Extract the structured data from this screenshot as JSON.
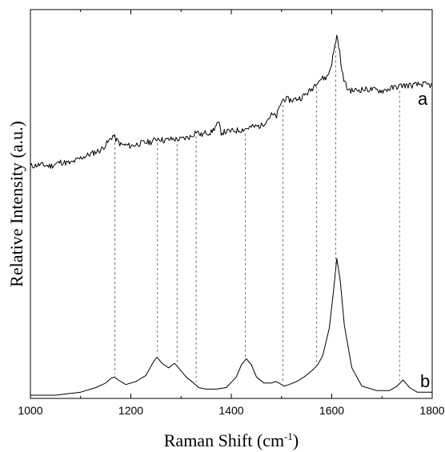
{
  "chart_data": {
    "type": "line",
    "xlabel": "Raman Shift (cm",
    "xlabel_superscript": "-1",
    "xlabel_close": ")",
    "ylabel": "Relative Intensity (a.u.)",
    "xlim": [
      1000,
      1800
    ],
    "xticks": [
      1000,
      1200,
      1400,
      1600,
      1800
    ],
    "minor_step": 100,
    "yticks_labeled": false,
    "grid": false,
    "series": [
      {
        "name": "a",
        "x": [
          1000,
          1020,
          1040,
          1060,
          1080,
          1100,
          1120,
          1140,
          1155,
          1165,
          1170,
          1180,
          1200,
          1220,
          1240,
          1255,
          1265,
          1280,
          1300,
          1320,
          1330,
          1340,
          1350,
          1360,
          1370,
          1375,
          1380,
          1400,
          1420,
          1440,
          1460,
          1480,
          1490,
          1500,
          1505,
          1520,
          1540,
          1560,
          1570,
          1580,
          1590,
          1595,
          1600,
          1605,
          1610,
          1615,
          1620,
          1630,
          1640,
          1660,
          1680,
          1700,
          1720,
          1740,
          1760,
          1780,
          1800
        ],
        "y": [
          0.3,
          0.31,
          0.3,
          0.33,
          0.32,
          0.36,
          0.39,
          0.42,
          0.48,
          0.53,
          0.5,
          0.46,
          0.45,
          0.47,
          0.48,
          0.51,
          0.49,
          0.5,
          0.5,
          0.52,
          0.56,
          0.53,
          0.55,
          0.55,
          0.6,
          0.62,
          0.55,
          0.56,
          0.57,
          0.59,
          0.6,
          0.68,
          0.67,
          0.78,
          0.8,
          0.79,
          0.81,
          0.87,
          0.93,
          0.95,
          0.96,
          1.0,
          1.07,
          1.17,
          1.27,
          1.18,
          1.0,
          0.88,
          0.86,
          0.87,
          0.87,
          0.86,
          0.88,
          0.9,
          0.9,
          0.91,
          0.9
        ]
      },
      {
        "name": "b",
        "x": [
          1000,
          1050,
          1100,
          1130,
          1150,
          1160,
          1167,
          1175,
          1190,
          1210,
          1230,
          1245,
          1252,
          1262,
          1275,
          1287,
          1295,
          1310,
          1325,
          1335,
          1350,
          1370,
          1390,
          1410,
          1420,
          1430,
          1440,
          1450,
          1465,
          1480,
          1488,
          1495,
          1505,
          1515,
          1530,
          1545,
          1560,
          1572,
          1582,
          1595,
          1604,
          1610,
          1617,
          1625,
          1640,
          1660,
          1690,
          1715,
          1730,
          1742,
          1755,
          1770,
          1800
        ],
        "y": [
          0.0,
          0.0,
          0.02,
          0.05,
          0.08,
          0.11,
          0.12,
          0.1,
          0.07,
          0.09,
          0.13,
          0.22,
          0.25,
          0.21,
          0.18,
          0.21,
          0.18,
          0.12,
          0.08,
          0.05,
          0.04,
          0.04,
          0.05,
          0.12,
          0.2,
          0.24,
          0.2,
          0.12,
          0.08,
          0.08,
          0.09,
          0.08,
          0.06,
          0.07,
          0.09,
          0.12,
          0.16,
          0.2,
          0.26,
          0.44,
          0.7,
          0.9,
          0.75,
          0.46,
          0.18,
          0.06,
          0.03,
          0.03,
          0.06,
          0.1,
          0.05,
          0.02,
          0.02
        ]
      }
    ],
    "peak_markers": [
      1168,
      1253,
      1292,
      1330,
      1428,
      1503,
      1570,
      1608,
      1735
    ],
    "trace_labels": [
      "a",
      "b"
    ]
  }
}
